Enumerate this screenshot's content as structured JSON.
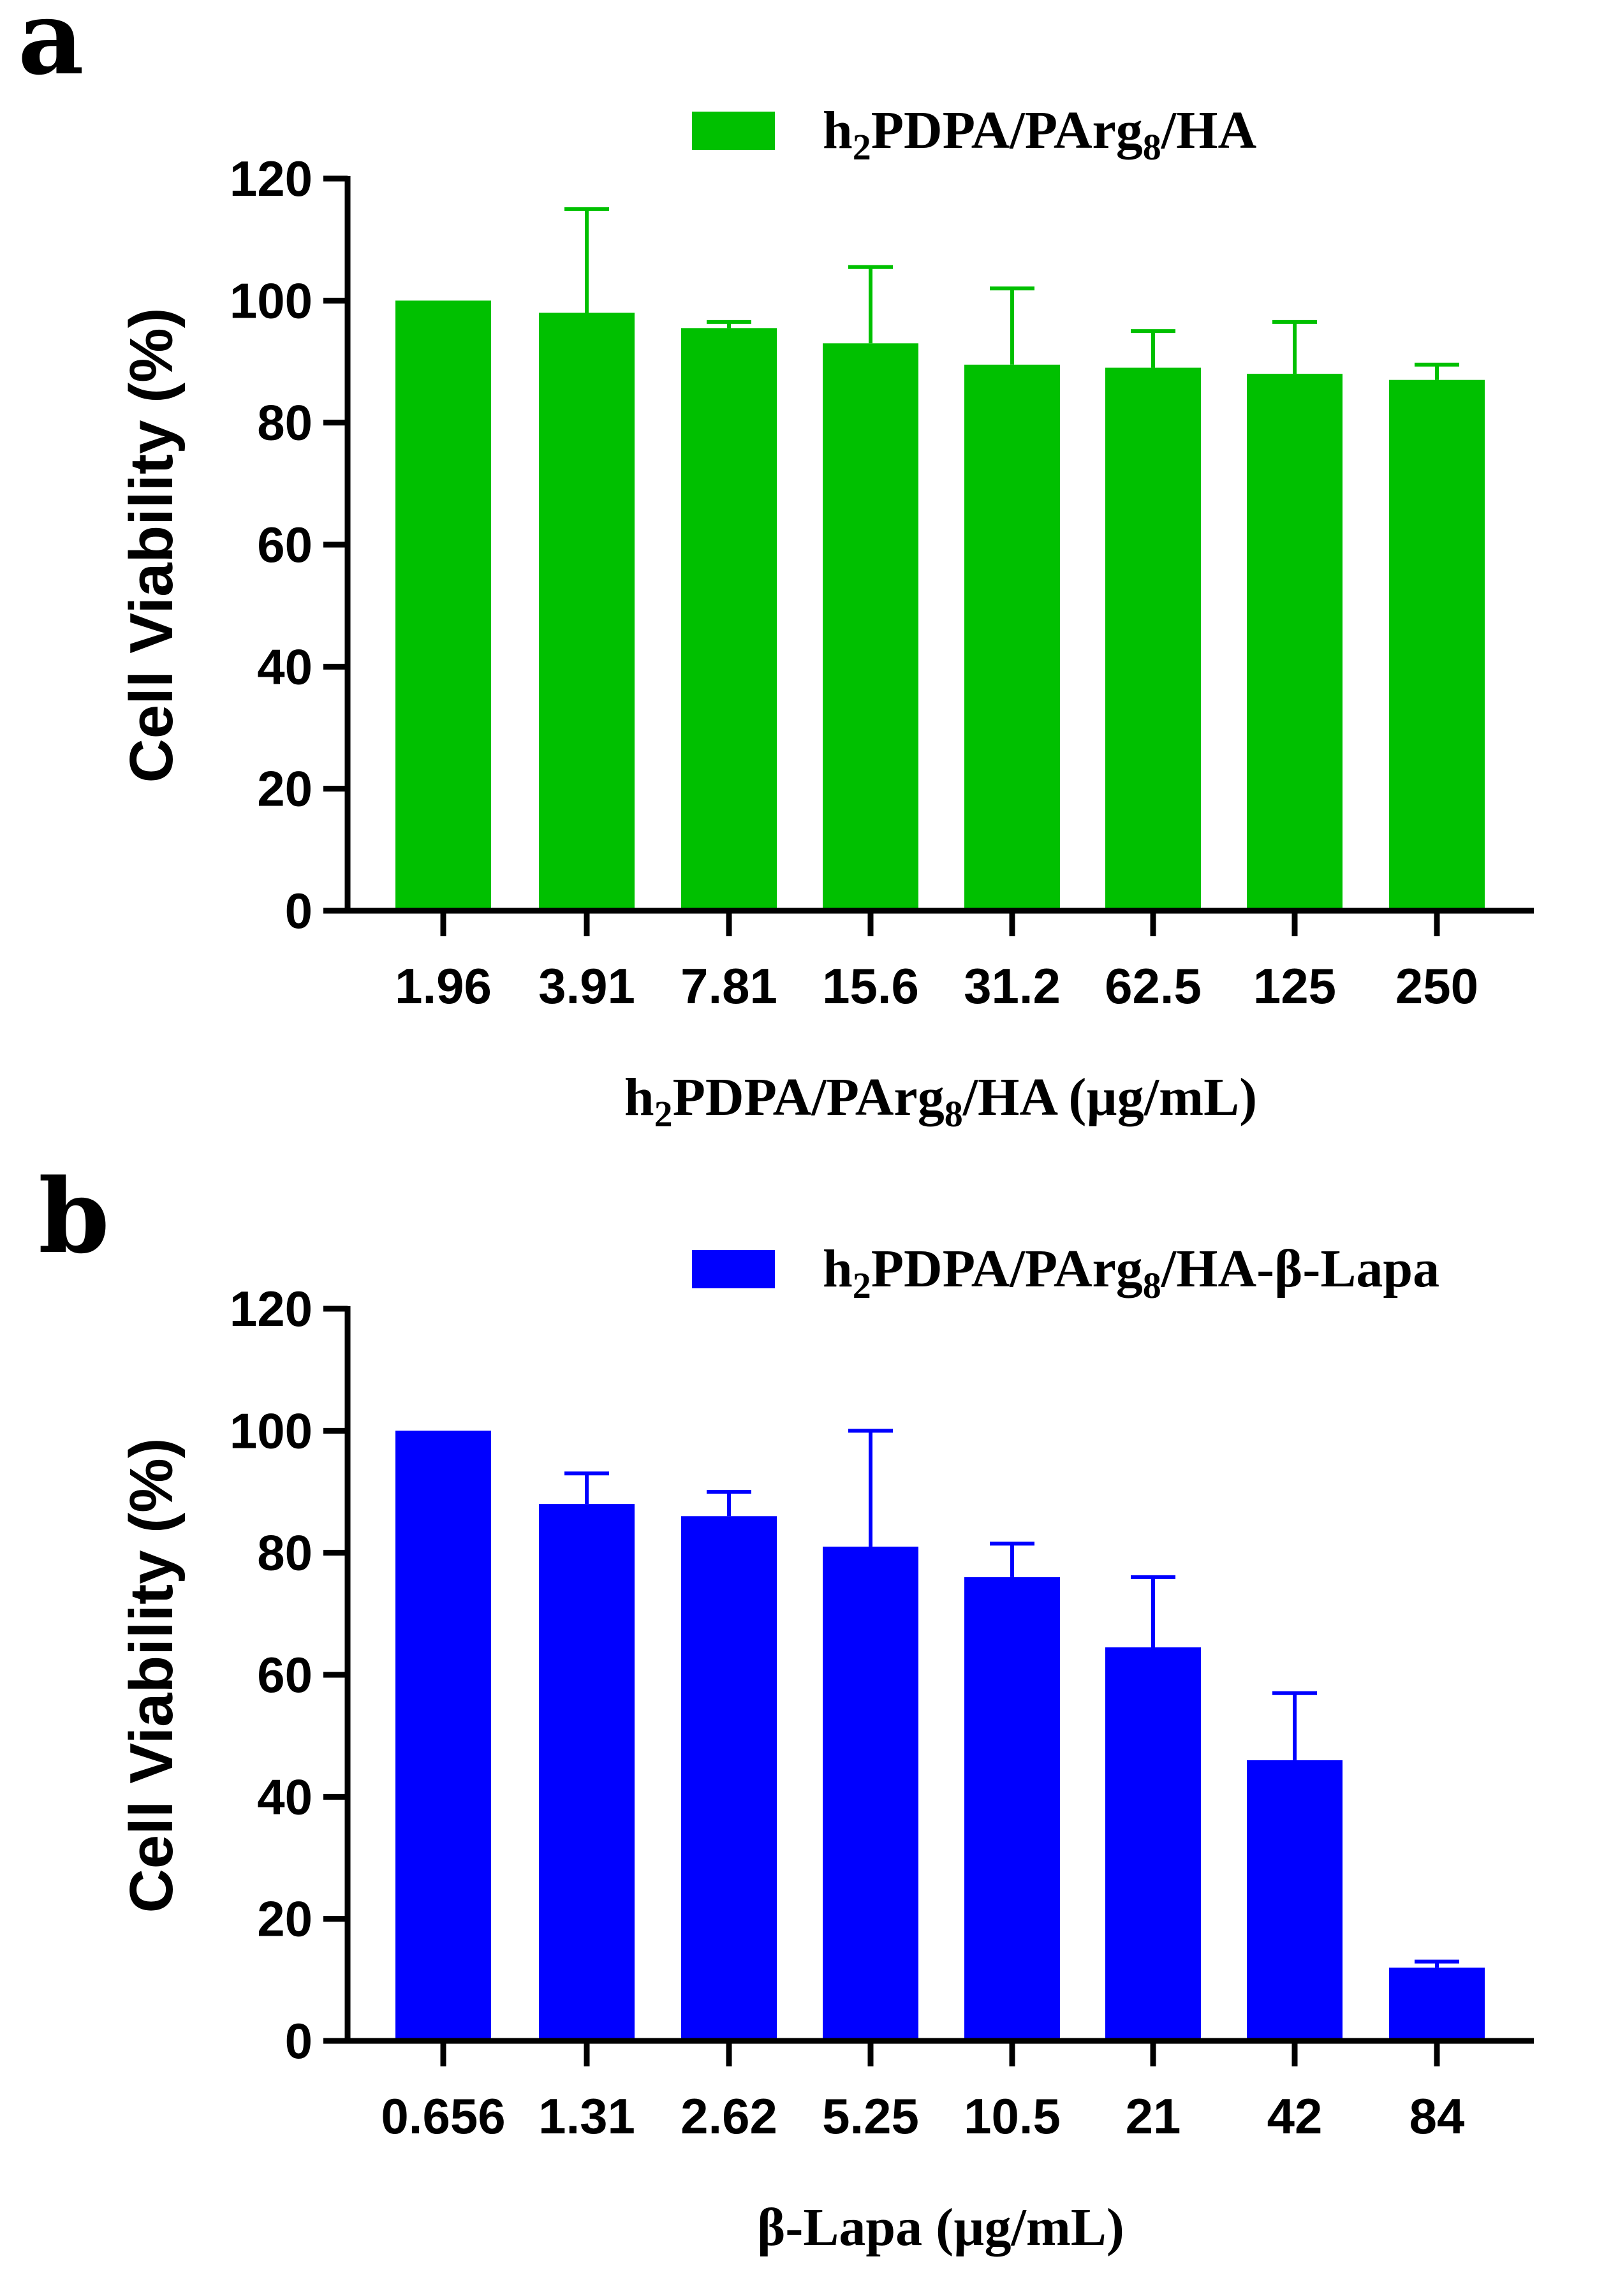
{
  "chart_data": [
    {
      "panel_label": "a",
      "type": "bar",
      "legend": {
        "main": "h",
        "sub1": "2",
        "mid": "PDPA/PArg",
        "sub2": "8",
        "tail": "/HA"
      },
      "categories": [
        "1.96",
        "3.91",
        "7.81",
        "15.6",
        "31.2",
        "62.5",
        "125",
        "250"
      ],
      "series": [
        {
          "name": "h2PDPA/PArg8/HA",
          "values": [
            100,
            98,
            95.5,
            93,
            89.5,
            89,
            88,
            87
          ],
          "error_upper": [
            100,
            115,
            96.5,
            105.5,
            102,
            95,
            96.5,
            89.5
          ],
          "color": "#00c000"
        }
      ],
      "ylabel": "Cell Viability (%)",
      "xlabel": {
        "main": "h",
        "sub1": "2",
        "mid": "PDPA/PArg",
        "sub2": "8",
        "tail": "/HA (µg/mL)"
      },
      "ylim": [
        0,
        120
      ],
      "yticks": [
        "0",
        "20",
        "40",
        "60",
        "80",
        "100",
        "120"
      ]
    },
    {
      "panel_label": "b",
      "type": "bar",
      "legend": {
        "main": "h",
        "sub1": "2",
        "mid": "PDPA/PArg",
        "sub2": "8",
        "tail": "/HA-β-Lapa"
      },
      "categories": [
        "0.656",
        "1.31",
        "2.62",
        "5.25",
        "10.5",
        "21",
        "42",
        "84"
      ],
      "series": [
        {
          "name": "h2PDPA/PArg8/HA-β-Lapa",
          "values": [
            100,
            88,
            86,
            81,
            76,
            64.5,
            46,
            12
          ],
          "error_upper": [
            100,
            93,
            90,
            100,
            81.5,
            76,
            57,
            13
          ],
          "color": "#0000ff"
        }
      ],
      "ylabel": "Cell Viability (%)",
      "xlabel": {
        "main": "β-Lapa (µg/mL)"
      },
      "ylim": [
        0,
        120
      ],
      "yticks": [
        "0",
        "20",
        "40",
        "60",
        "80",
        "100",
        "120"
      ]
    }
  ]
}
